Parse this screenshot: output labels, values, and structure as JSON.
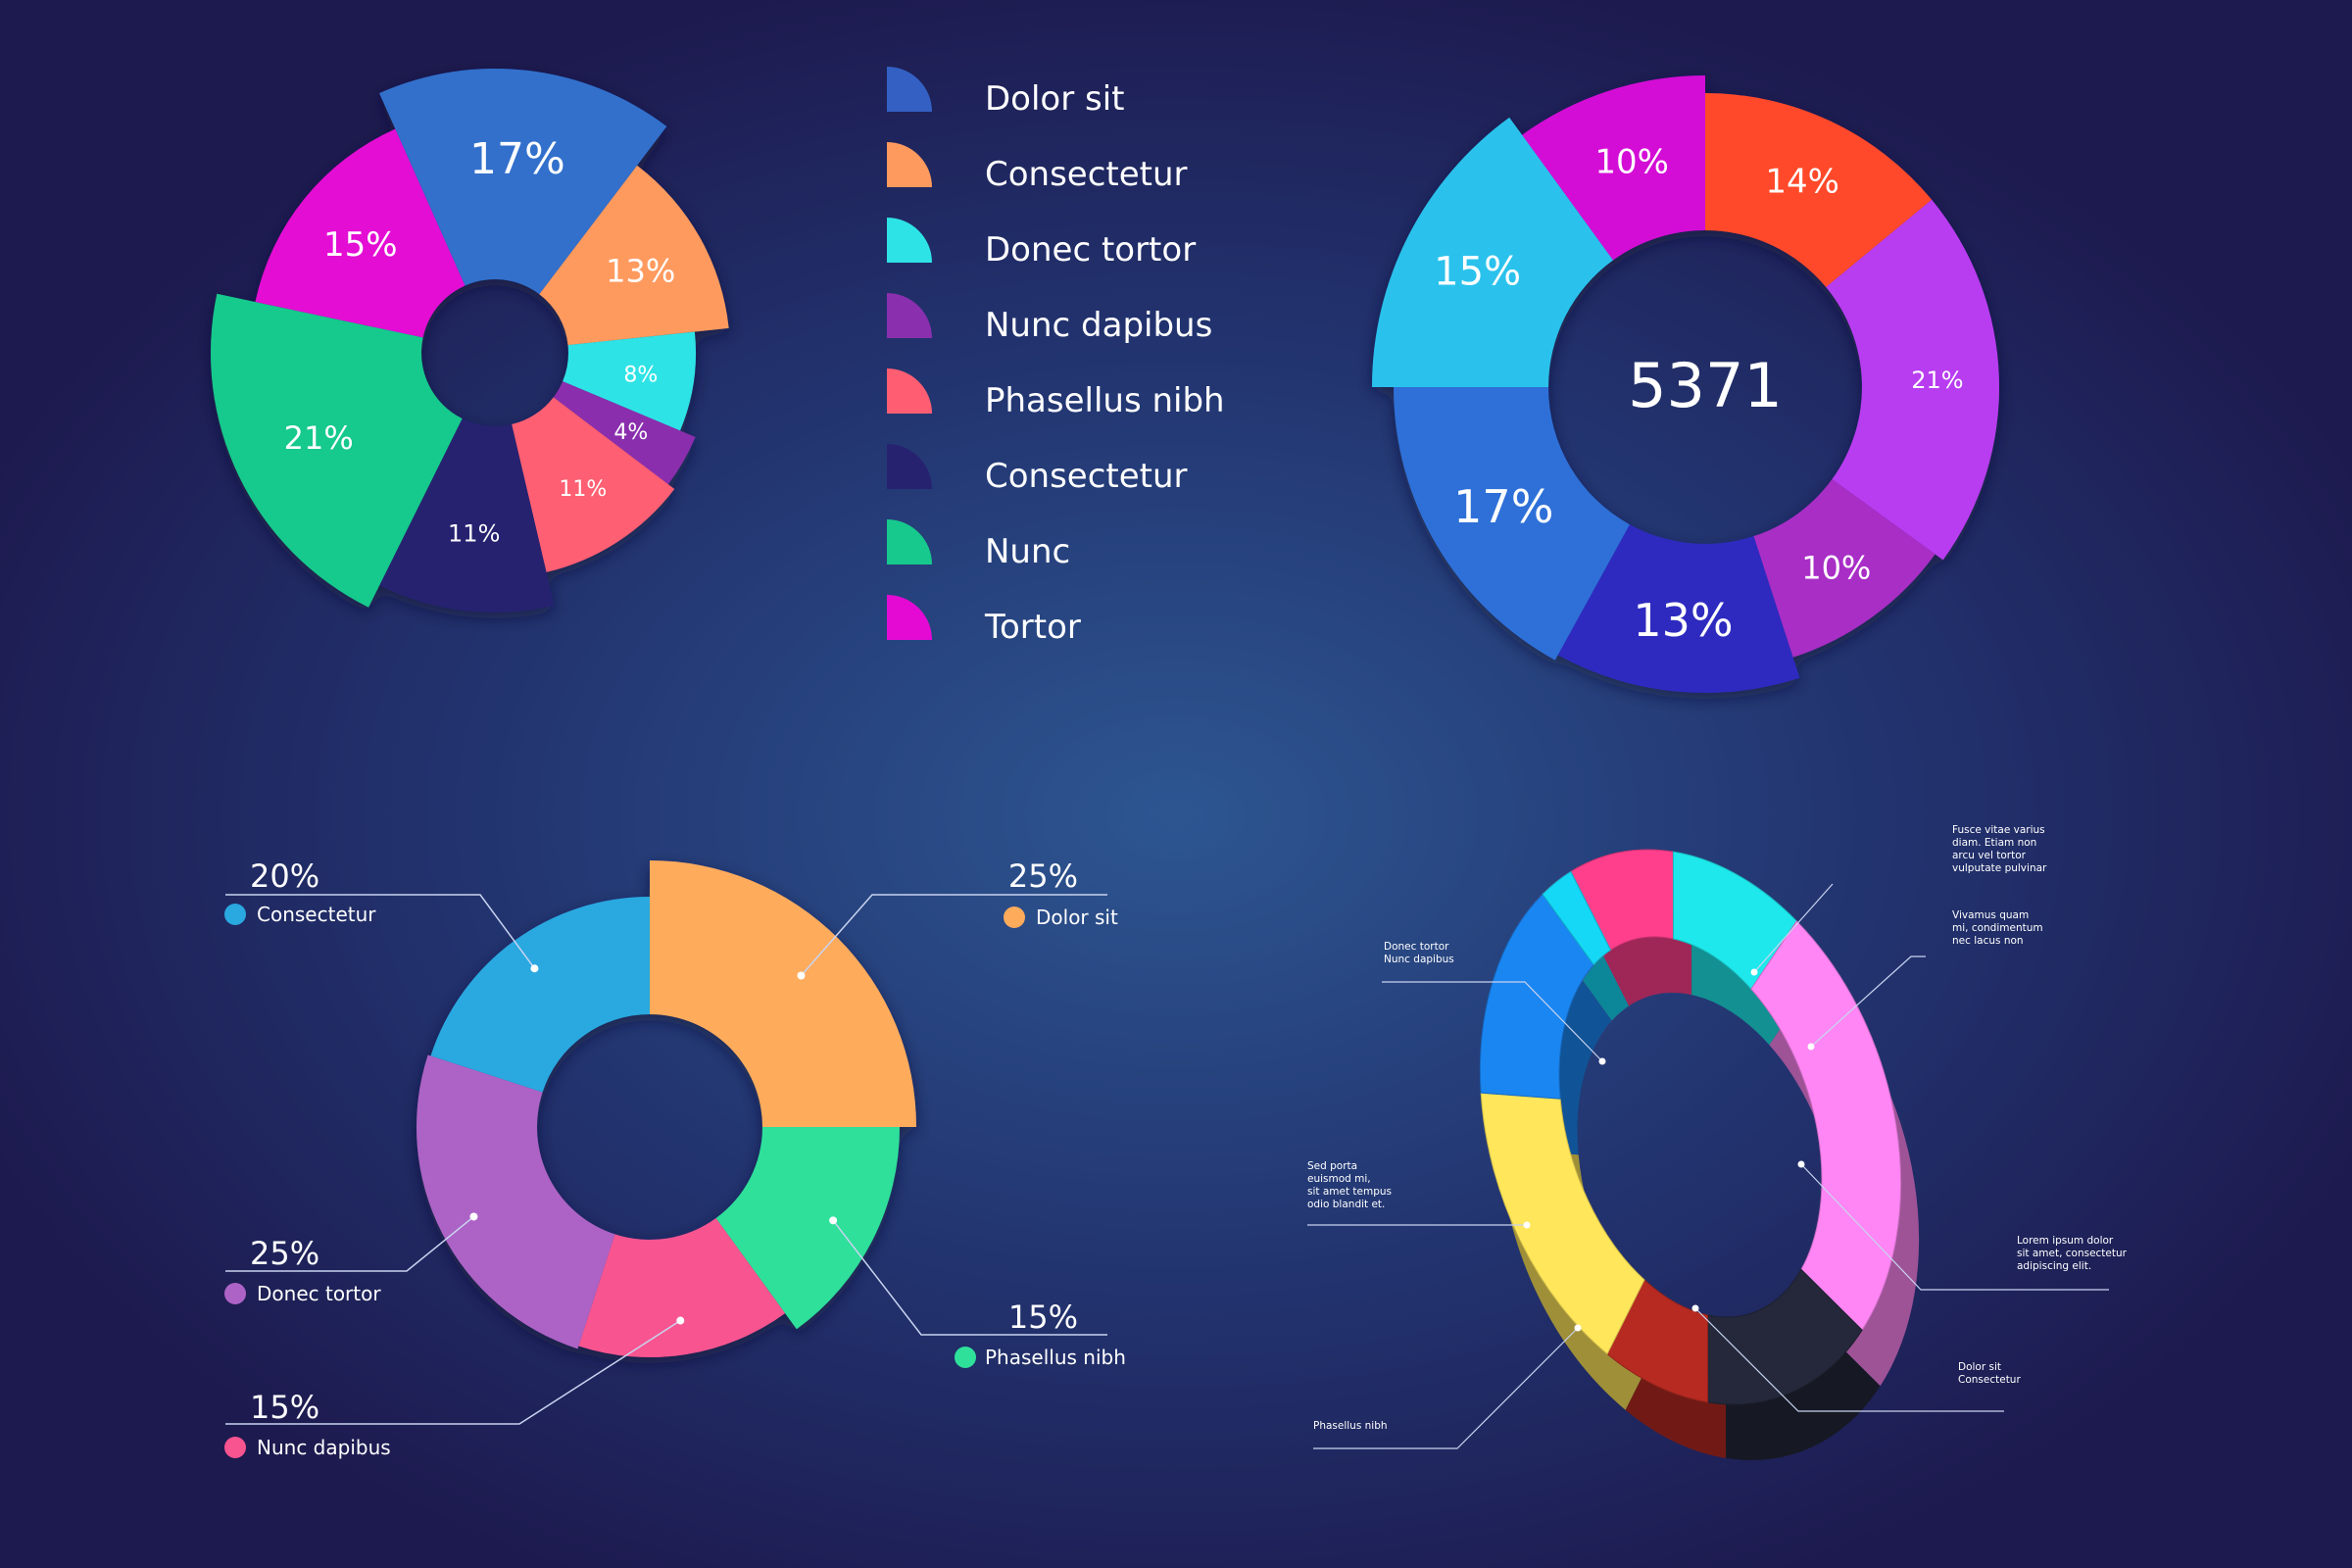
{
  "colors": {
    "blue_steel": "#3460c4",
    "orange": "#ff9a5e",
    "cyan": "#2ee3e6",
    "purple": "#8a2fae",
    "salmon": "#ff5e72",
    "navy": "#262270",
    "green": "#17c98c",
    "magenta": "#e40ad4"
  },
  "chart_data": [
    {
      "type": "pie",
      "id": "exploded-pie",
      "slices": [
        {
          "label": "17%",
          "value": 17,
          "color": "#3170cc"
        },
        {
          "label": "13%",
          "value": 13,
          "color": "#ff9a5e"
        },
        {
          "label": "8%",
          "value": 8,
          "color": "#2ee3e6"
        },
        {
          "label": "4%",
          "value": 4,
          "color": "#8a2fae"
        },
        {
          "label": "11%",
          "value": 11,
          "color": "#ff5e72"
        },
        {
          "label": "11%",
          "value": 11,
          "color": "#262270"
        },
        {
          "label": "21%",
          "value": 21,
          "color": "#17c98c"
        },
        {
          "label": "15%",
          "value": 15,
          "color": "#e40ad4"
        }
      ],
      "legend": [
        {
          "name": "Dolor sit",
          "color": "#3460c4"
        },
        {
          "name": "Consectetur",
          "color": "#ff9a5e"
        },
        {
          "name": "Donec tortor",
          "color": "#2ee3e6"
        },
        {
          "name": "Nunc dapibus",
          "color": "#8a2fae"
        },
        {
          "name": "Phasellus nibh",
          "color": "#ff5e72"
        },
        {
          "name": "Consectetur",
          "color": "#262270"
        },
        {
          "name": "Nunc",
          "color": "#17c98c"
        },
        {
          "name": "Tortor",
          "color": "#e40ad4"
        }
      ]
    },
    {
      "type": "pie",
      "id": "donut-total",
      "center_value": "5371",
      "slices": [
        {
          "label": "10%",
          "value": 10,
          "color": "#d40fd6"
        },
        {
          "label": "14%",
          "value": 14,
          "color": "#ff4a2a"
        },
        {
          "label": "21%",
          "value": 21,
          "color": "#b83cf0"
        },
        {
          "label": "10%",
          "value": 10,
          "color": "#a82ec6"
        },
        {
          "label": "13%",
          "value": 13,
          "color": "#2f2cc0"
        },
        {
          "label": "17%",
          "value": 17,
          "color": "#2f6fd8"
        },
        {
          "label": "15%",
          "value": 15,
          "color": "#2cc2ec"
        }
      ]
    },
    {
      "type": "pie",
      "id": "callout-donut",
      "slices": [
        {
          "pct": "25%",
          "name": "Dolor sit",
          "value": 25,
          "color": "#ffab5c"
        },
        {
          "pct": "15%",
          "name": "Phasellus nibh",
          "value": 15,
          "color": "#2ee09a"
        },
        {
          "pct": "15%",
          "name": "Nunc dapibus",
          "value": 15,
          "color": "#f85490"
        },
        {
          "pct": "25%",
          "name": "Donec tortor",
          "value": 25,
          "color": "#ad63c6"
        },
        {
          "pct": "20%",
          "name": "Consectetur",
          "value": 20,
          "color": "#2aa8e0"
        }
      ]
    },
    {
      "type": "pie",
      "id": "isometric-ring",
      "annotations": [
        {
          "text": [
            "Donec tortor",
            "Nunc dapibus"
          ]
        },
        {
          "text": [
            "Fusce vitae varius",
            "diam.  Etiam non",
            "arcu vel tortor",
            "vulputate pulvinar"
          ]
        },
        {
          "text": [
            "Vivamus quam",
            "mi, condimentum",
            "nec lacus non"
          ]
        },
        {
          "text": [
            "Sed porta",
            "euismod mi,",
            "sit amet tempus",
            "odio blandit et."
          ]
        },
        {
          "text": [
            "Lorem ipsum dolor",
            "sit amet, consectetur",
            "adipiscing elit."
          ]
        },
        {
          "text": [
            "Dolor sit",
            "Consectetur"
          ]
        },
        {
          "text": [
            "Phasellus nibh"
          ]
        }
      ],
      "segments": [
        {
          "color": "#ff3f8c"
        },
        {
          "color": "#1ee8ec"
        },
        {
          "color": "#ff86f4"
        },
        {
          "color": "#24283a"
        },
        {
          "color": "#b62a22"
        },
        {
          "color": "#ffe65a"
        },
        {
          "color": "#1a86f2"
        },
        {
          "color": "#14d8f6"
        }
      ]
    }
  ]
}
